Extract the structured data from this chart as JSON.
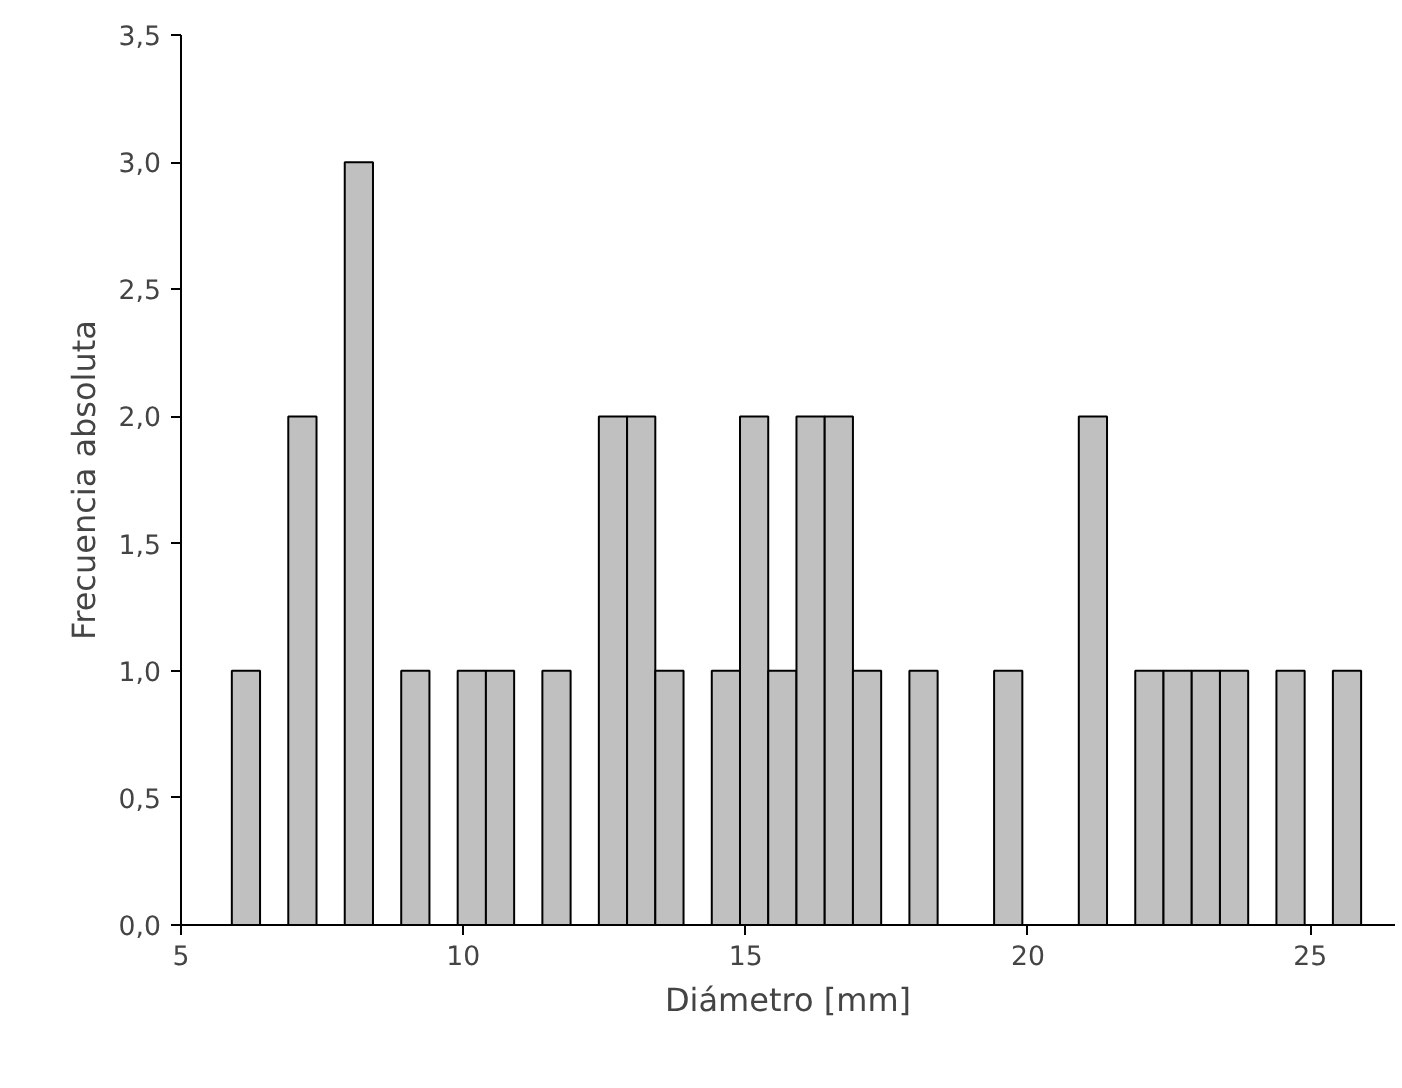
{
  "chart_data": {
    "type": "histogram",
    "xlabel": "Diámetro [mm]",
    "ylabel": "Frecuencia absoluta",
    "bins": [
      5.9,
      6.4,
      6.9,
      7.4,
      7.9,
      8.4,
      8.9,
      9.4,
      9.9,
      10.4,
      10.9,
      11.4,
      11.9,
      12.4,
      12.9,
      13.4,
      13.9,
      14.4,
      14.9,
      15.4,
      15.9,
      16.4,
      16.9,
      17.4,
      17.9,
      18.4,
      18.9,
      19.4,
      19.9,
      20.4,
      20.9,
      21.4,
      21.9,
      22.4,
      22.9,
      23.4,
      23.9,
      24.4,
      24.9,
      25.4,
      25.9
    ],
    "values": [
      1,
      0,
      2,
      0,
      3,
      0,
      1,
      0,
      1,
      1,
      0,
      1,
      0,
      2,
      2,
      1,
      0,
      1,
      2,
      1,
      2,
      2,
      1,
      0,
      1,
      0,
      0,
      1,
      0,
      0,
      2,
      0,
      1,
      1,
      1,
      1,
      0,
      1,
      0,
      1
    ],
    "color": "#c0c0c0",
    "xlim": [
      5,
      26.5
    ],
    "xticks": [
      5,
      10,
      15,
      20,
      25
    ],
    "ylim": [
      0,
      3.5
    ],
    "yticks": [
      {
        "value": 0,
        "label": "0,0"
      },
      {
        "value": 0.5,
        "label": "0,5"
      },
      {
        "value": 1,
        "label": "1,0"
      },
      {
        "value": 1.5,
        "label": "1,5"
      },
      {
        "value": 2,
        "label": "2,0"
      },
      {
        "value": 2.5,
        "label": "2,5"
      },
      {
        "value": 3,
        "label": "3,0"
      },
      {
        "value": 3.5,
        "label": "3,5"
      }
    ],
    "grid": false
  }
}
